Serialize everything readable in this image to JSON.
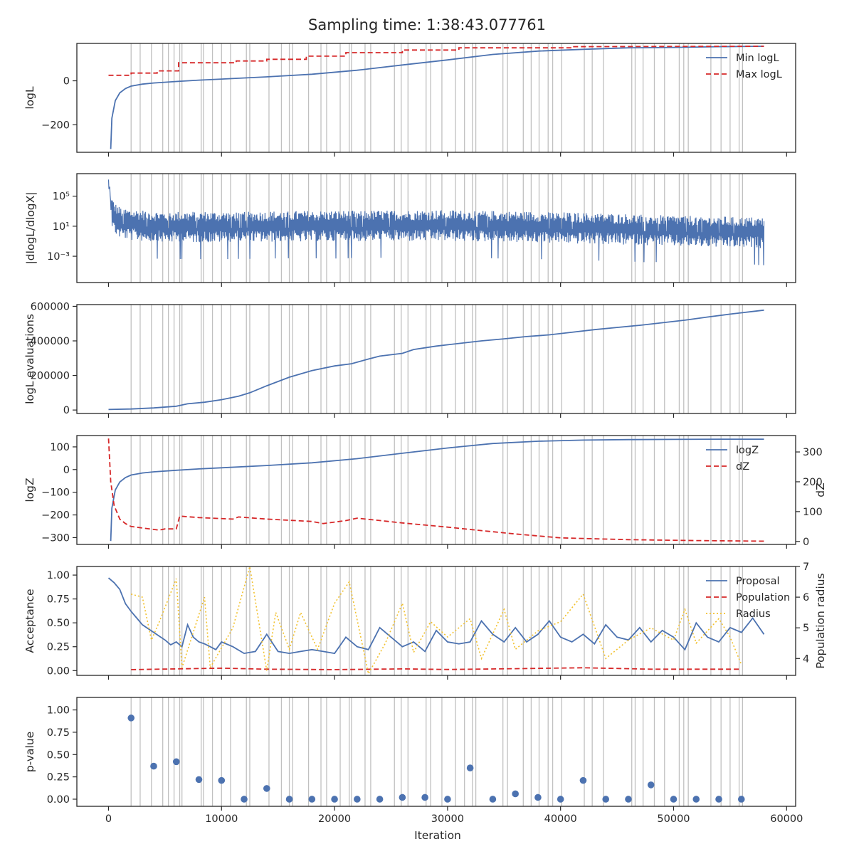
{
  "figure": {
    "title": "Sampling time: 1:38:43.077761",
    "xlabel": "Iteration",
    "xlim": [
      -2800,
      60800
    ],
    "xticks": [
      0,
      10000,
      20000,
      30000,
      40000,
      50000,
      60000
    ],
    "xtick_labels": [
      "0",
      "10000",
      "20000",
      "30000",
      "40000",
      "50000",
      "60000"
    ],
    "colors": {
      "blue": "#4c72b0",
      "red": "#c44e52",
      "red_dash": "#d62728",
      "gold": "#f2c12e",
      "vline": "#c0c0c0",
      "axis": "#262626"
    }
  },
  "chart_data": [
    {
      "type": "line",
      "panel": "loglikelihood",
      "ylabel": "logL",
      "ylim": [
        -325,
        170
      ],
      "yticks": [
        -200,
        0
      ],
      "ytick_labels": [
        "−200",
        "0"
      ],
      "legend": "top-right",
      "series": [
        {
          "name": "Min logL",
          "style": "solid",
          "color": "#4c72b0",
          "x": [
            200,
            300,
            600,
            1000,
            1500,
            2000,
            3000,
            4000,
            6000,
            8000,
            10000,
            14000,
            18000,
            22000,
            26000,
            30000,
            34000,
            38000,
            42000,
            46000,
            50000,
            54000,
            58000
          ],
          "y": [
            -310,
            -170,
            -90,
            -55,
            -35,
            -24,
            -15,
            -10,
            -3,
            3,
            8,
            18,
            30,
            48,
            72,
            95,
            120,
            135,
            143,
            150,
            152,
            155,
            157
          ]
        },
        {
          "name": "Max logL",
          "style": "dashed",
          "color": "#d62728",
          "x": [
            0,
            2000,
            2000,
            4300,
            4300,
            6200,
            6200,
            11300,
            11300,
            14000,
            14000,
            17500,
            17500,
            21000,
            21000,
            26000,
            26000,
            31000,
            31000,
            41000,
            41000,
            58000
          ],
          "y": [
            25,
            25,
            35,
            35,
            45,
            45,
            82,
            82,
            90,
            90,
            98,
            98,
            112,
            112,
            128,
            128,
            140,
            140,
            150,
            150,
            155,
            157
          ]
        }
      ]
    },
    {
      "type": "line",
      "panel": "gradient",
      "ylabel": "|dlogL/dlogX|",
      "yscale": "log",
      "ylim_log10": [
        -6.5,
        8
      ],
      "yticks_log10": [
        -3,
        1,
        5
      ],
      "ytick_labels": [
        "10⁻³",
        "10¹",
        "10⁵"
      ],
      "series": [
        {
          "name": "",
          "color": "#4c72b0",
          "envelope_x": [
            0,
            200,
            500,
            1000,
            2000,
            5000,
            10000,
            20000,
            30000,
            40000,
            50000,
            58000
          ],
          "envelope_median_log10": [
            6.5,
            3.5,
            2.2,
            1.6,
            1.3,
            1.0,
            1.0,
            1.1,
            1.2,
            0.9,
            0.5,
            0.2
          ]
        }
      ]
    },
    {
      "type": "line",
      "panel": "evaluations",
      "ylabel": "logL evaluations",
      "ylim": [
        -20000,
        610000
      ],
      "yticks": [
        0,
        200000,
        400000,
        600000
      ],
      "ytick_labels": [
        "0",
        "200000",
        "400000",
        "600000"
      ],
      "series": [
        {
          "name": "",
          "color": "#4c72b0",
          "x": [
            0,
            2000,
            4000,
            6000,
            7000,
            8500,
            10000,
            11500,
            12500,
            14000,
            16000,
            18000,
            20000,
            21500,
            23000,
            24000,
            26000,
            27000,
            29000,
            31000,
            33000,
            35000,
            37000,
            39000,
            41000,
            43000,
            45000,
            47000,
            49000,
            51000,
            53000,
            55000,
            58000
          ],
          "y": [
            3000,
            6000,
            12000,
            22000,
            36000,
            45000,
            60000,
            80000,
            100000,
            140000,
            190000,
            228000,
            255000,
            268000,
            295000,
            312000,
            328000,
            350000,
            370000,
            385000,
            400000,
            412000,
            425000,
            435000,
            450000,
            465000,
            478000,
            490000,
            505000,
            520000,
            538000,
            555000,
            578000
          ]
        }
      ]
    },
    {
      "type": "line",
      "panel": "evidence",
      "ylabel": "logZ",
      "ylabel_right": "dZ",
      "ylim": [
        -330,
        150
      ],
      "yticks": [
        -300,
        -200,
        -100,
        0,
        100
      ],
      "ytick_labels": [
        "−300",
        "−200",
        "−100",
        "0",
        "100"
      ],
      "ylim_right": [
        -10,
        355
      ],
      "yticks_right": [
        0,
        100,
        200,
        300
      ],
      "ytick_labels_right": [
        "0",
        "100",
        "200",
        "300"
      ],
      "legend": "top-right",
      "series": [
        {
          "name": "logZ",
          "style": "solid",
          "axis": "left",
          "color": "#4c72b0",
          "x": [
            200,
            300,
            600,
            1000,
            1500,
            2000,
            3000,
            4000,
            6000,
            8000,
            10000,
            14000,
            18000,
            22000,
            26000,
            30000,
            34000,
            38000,
            42000,
            46000,
            50000,
            54000,
            58000
          ],
          "y": [
            -315,
            -170,
            -90,
            -55,
            -35,
            -24,
            -15,
            -10,
            -3,
            3,
            8,
            18,
            30,
            48,
            72,
            95,
            115,
            125,
            130,
            132,
            133,
            134,
            134
          ]
        },
        {
          "name": "dZ",
          "style": "dashed",
          "axis": "right",
          "color": "#d62728",
          "x": [
            0,
            200,
            500,
            1000,
            1500,
            2000,
            3000,
            4500,
            5000,
            6000,
            6300,
            8000,
            11000,
            11500,
            14000,
            18000,
            19000,
            20000,
            21000,
            22000,
            23500,
            26000,
            30000,
            32000,
            36000,
            40000,
            46000,
            52000,
            58000
          ],
          "y": [
            345,
            200,
            120,
            75,
            60,
            50,
            45,
            38,
            42,
            42,
            85,
            80,
            75,
            82,
            75,
            67,
            60,
            65,
            70,
            78,
            72,
            62,
            48,
            40,
            25,
            12,
            6,
            3,
            1
          ]
        }
      ]
    },
    {
      "type": "line",
      "panel": "acceptance",
      "ylabel": "Acceptance",
      "ylabel_right": "Population radius",
      "ylim": [
        -0.05,
        1.09
      ],
      "yticks": [
        0,
        0.25,
        0.5,
        0.75,
        1.0
      ],
      "ytick_labels": [
        "0.00",
        "0.25",
        "0.50",
        "0.75",
        "1.00"
      ],
      "ylim_right": [
        3.45,
        7.0
      ],
      "yticks_right": [
        4,
        5,
        6,
        7
      ],
      "ytick_labels_right": [
        "4",
        "5",
        "6",
        "7"
      ],
      "legend": "top-right",
      "series": [
        {
          "name": "Proposal",
          "style": "solid",
          "axis": "left",
          "color": "#4c72b0",
          "x": [
            0,
            500,
            1000,
            1500,
            2000,
            2500,
            3000,
            3500,
            4000,
            4500,
            5000,
            5500,
            6000,
            6500,
            7000,
            7500,
            8000,
            8500,
            9000,
            9500,
            10000,
            11000,
            12000,
            13000,
            14000,
            15000,
            16000,
            17000,
            18000,
            19000,
            20000,
            21000,
            22000,
            23000,
            24000,
            25000,
            26000,
            27000,
            28000,
            29000,
            30000,
            31000,
            32000,
            33000,
            34000,
            35000,
            36000,
            37000,
            38000,
            39000,
            40000,
            41000,
            42000,
            43000,
            44000,
            45000,
            46000,
            47000,
            48000,
            49000,
            50000,
            51000,
            52000,
            53000,
            54000,
            55000,
            56000,
            57000,
            58000
          ],
          "y": [
            0.97,
            0.92,
            0.85,
            0.7,
            0.62,
            0.55,
            0.48,
            0.44,
            0.4,
            0.36,
            0.32,
            0.27,
            0.3,
            0.25,
            0.48,
            0.35,
            0.3,
            0.28,
            0.25,
            0.22,
            0.3,
            0.25,
            0.18,
            0.2,
            0.38,
            0.2,
            0.18,
            0.2,
            0.22,
            0.2,
            0.18,
            0.35,
            0.25,
            0.22,
            0.45,
            0.35,
            0.25,
            0.3,
            0.2,
            0.42,
            0.3,
            0.28,
            0.3,
            0.52,
            0.38,
            0.3,
            0.45,
            0.3,
            0.38,
            0.52,
            0.35,
            0.3,
            0.38,
            0.28,
            0.48,
            0.35,
            0.32,
            0.45,
            0.3,
            0.42,
            0.35,
            0.22,
            0.5,
            0.35,
            0.3,
            0.45,
            0.4,
            0.55,
            0.38
          ]
        },
        {
          "name": "Population",
          "style": "dashed",
          "axis": "left",
          "color": "#d62728",
          "x": [
            2000,
            10000,
            14000,
            20000,
            26000,
            30000,
            36000,
            42000,
            48000,
            56000
          ],
          "y": [
            0.01,
            0.025,
            0.015,
            0.01,
            0.018,
            0.012,
            0.02,
            0.03,
            0.015,
            0.015
          ]
        },
        {
          "name": "Radius",
          "style": "dotted",
          "axis": "right",
          "color": "#f2c12e",
          "x": [
            2000,
            3000,
            3800,
            4500,
            6000,
            6500,
            8500,
            9000,
            11000,
            12500,
            14000,
            14800,
            16000,
            17000,
            18500,
            20000,
            21300,
            23000,
            24500,
            26000,
            27000,
            28500,
            30000,
            32000,
            33000,
            35000,
            36000,
            38000,
            40000,
            42000,
            44000,
            46000,
            48000,
            50000,
            51000,
            52000,
            54000,
            55000,
            56000
          ],
          "y": [
            6.1,
            6.0,
            4.6,
            5.2,
            6.6,
            3.7,
            6.0,
            3.7,
            5.0,
            7.0,
            3.6,
            5.5,
            4.3,
            5.5,
            4.3,
            5.8,
            6.5,
            3.5,
            4.5,
            5.8,
            4.2,
            5.2,
            4.7,
            5.3,
            4.0,
            5.6,
            4.3,
            4.9,
            5.2,
            6.1,
            4.0,
            4.6,
            5.0,
            4.6,
            5.6,
            4.5,
            5.3,
            4.7,
            3.8
          ]
        }
      ]
    },
    {
      "type": "scatter",
      "panel": "insertion",
      "ylabel": "p-value",
      "ylim": [
        -0.08,
        1.14
      ],
      "yticks": [
        0,
        0.25,
        0.5,
        0.75,
        1.0
      ],
      "ytick_labels": [
        "0.00",
        "0.25",
        "0.50",
        "0.75",
        "1.00"
      ],
      "series": [
        {
          "name": "",
          "color": "#4c72b0",
          "x": [
            2000,
            4000,
            6000,
            8000,
            10000,
            12000,
            14000,
            16000,
            18000,
            20000,
            22000,
            24000,
            26000,
            28000,
            30000,
            32000,
            34000,
            36000,
            38000,
            40000,
            42000,
            44000,
            46000,
            48000,
            50000,
            52000,
            54000,
            56000
          ],
          "y": [
            0.91,
            0.37,
            0.42,
            0.22,
            0.21,
            0.0,
            0.12,
            0.0,
            0.0,
            0.0,
            0.0,
            0.0,
            0.02,
            0.02,
            0.0,
            0.35,
            0.0,
            0.06,
            0.02,
            0.0,
            0.21,
            0.0,
            0.0,
            0.16,
            0.0,
            0.0,
            0.0,
            0.0
          ]
        }
      ]
    }
  ],
  "vertical_lines_x": [
    2000,
    2800,
    3800,
    4800,
    5300,
    5800,
    6300,
    6500,
    8200,
    8400,
    9200,
    10000,
    10800,
    12200,
    12500,
    14200,
    15300,
    16000,
    16300,
    17700,
    18800,
    19300,
    20500,
    21300,
    21500,
    22700,
    23200,
    25300,
    25900,
    26500,
    28100,
    28500,
    29500,
    30700,
    31500,
    32200,
    32500,
    34900,
    35300,
    36700,
    37400,
    38100,
    38900,
    39300,
    40100,
    42100,
    42800,
    43800,
    46300,
    46600,
    47300,
    48300,
    49200,
    50500,
    50900,
    51300,
    53300,
    54200,
    55000,
    55800,
    56100
  ]
}
